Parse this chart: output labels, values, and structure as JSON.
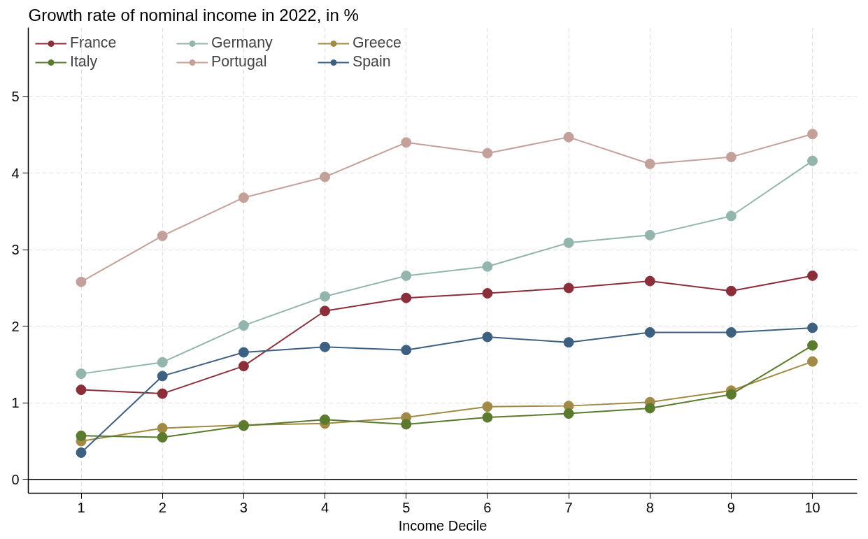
{
  "chart_data": {
    "type": "line",
    "title": "Growth rate of nominal income in 2022, in %",
    "xlabel": "Income Decile",
    "x": [
      1,
      2,
      3,
      4,
      5,
      6,
      7,
      8,
      9,
      10
    ],
    "series": [
      {
        "name": "France",
        "color": "#8b2e3a",
        "values": [
          1.17,
          1.12,
          1.48,
          2.2,
          2.37,
          2.43,
          2.5,
          2.59,
          2.46,
          2.66
        ]
      },
      {
        "name": "Germany",
        "color": "#93b5ae",
        "values": [
          1.38,
          1.53,
          2.01,
          2.39,
          2.66,
          2.78,
          3.09,
          3.19,
          3.44,
          4.16
        ]
      },
      {
        "name": "Greece",
        "color": "#a08a45",
        "values": [
          0.5,
          0.67,
          0.71,
          0.73,
          0.81,
          0.95,
          0.96,
          1.01,
          1.16,
          1.54
        ]
      },
      {
        "name": "Italy",
        "color": "#5a7a2e",
        "values": [
          0.57,
          0.55,
          0.7,
          0.78,
          0.72,
          0.81,
          0.86,
          0.93,
          1.11,
          1.75
        ]
      },
      {
        "name": "Portugal",
        "color": "#c4a09a",
        "values": [
          2.58,
          3.18,
          3.68,
          3.95,
          4.4,
          4.26,
          4.47,
          4.12,
          4.21,
          4.51
        ]
      },
      {
        "name": "Spain",
        "color": "#3e6080",
        "values": [
          0.35,
          1.35,
          1.66,
          1.73,
          1.69,
          1.86,
          1.79,
          1.92,
          1.92,
          1.98
        ]
      }
    ],
    "xlim": [
      0.35,
      10.55
    ],
    "ylim": [
      -0.18,
      5.9
    ],
    "xticks": [
      1,
      2,
      3,
      4,
      5,
      6,
      7,
      8,
      9,
      10
    ],
    "yticks": [
      0,
      1,
      2,
      3,
      4,
      5
    ],
    "ref_lines": [
      {
        "axis": "y",
        "value": 0,
        "color": "#000000"
      }
    ],
    "grid": true,
    "legend": "top left",
    "marker": "circle",
    "line_style": "solid"
  }
}
